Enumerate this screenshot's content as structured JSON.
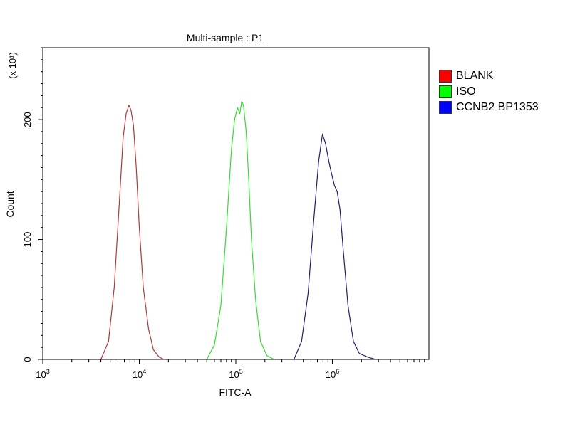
{
  "chart_data": {
    "type": "line",
    "title": "Multi-sample : P1",
    "xlabel": "FITC-A",
    "ylabel": "Count",
    "y_multiplier_label": "(x 10¹)",
    "x_scale": "log",
    "xlim": [
      1000,
      10000000
    ],
    "ylim": [
      0,
      260
    ],
    "x_tick_labels": [
      {
        "base": "10",
        "exp": "3"
      },
      {
        "base": "10",
        "exp": "4"
      },
      {
        "base": "10",
        "exp": "5"
      },
      {
        "base": "10",
        "exp": "6"
      }
    ],
    "y_ticks": [
      0,
      100,
      200
    ],
    "grid": false,
    "legend_position": "right",
    "series": [
      {
        "name": "BLANK",
        "color": "#ff0000",
        "line_color": "#b03a3a",
        "x": [
          4000,
          4800,
          5500,
          6200,
          6800,
          7300,
          7800,
          8200,
          8700,
          9300,
          10000,
          11000,
          12500,
          14000,
          16000,
          18000
        ],
        "y": [
          0,
          15,
          60,
          130,
          185,
          205,
          212,
          208,
          195,
          160,
          110,
          60,
          25,
          8,
          2,
          0
        ]
      },
      {
        "name": "ISO",
        "color": "#00ff00",
        "line_color": "#33dd33",
        "x": [
          50000,
          60000,
          70000,
          80000,
          90000,
          97000,
          104000,
          110000,
          115000,
          120000,
          128000,
          136000,
          145000,
          160000,
          180000,
          210000,
          250000
        ],
        "y": [
          0,
          12,
          45,
          110,
          175,
          200,
          210,
          205,
          215,
          212,
          190,
          150,
          100,
          50,
          15,
          3,
          0
        ]
      },
      {
        "name": "CCNB2 BP1353",
        "color": "#0000ff",
        "line_color": "#202070",
        "x": [
          400000,
          480000,
          560000,
          640000,
          720000,
          790000,
          850000,
          920000,
          980000,
          1050000,
          1120000,
          1200000,
          1300000,
          1450000,
          1650000,
          1900000,
          2300000,
          2800000
        ],
        "y": [
          0,
          15,
          55,
          115,
          165,
          188,
          180,
          165,
          155,
          145,
          140,
          125,
          90,
          45,
          15,
          5,
          2,
          0
        ]
      }
    ]
  }
}
